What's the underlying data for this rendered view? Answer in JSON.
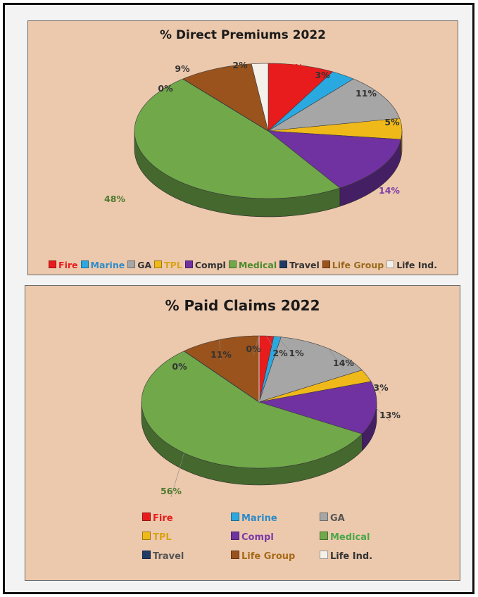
{
  "colors": {
    "Fire": "#e81c1c",
    "Marine": "#2aa8e0",
    "GA": "#a6a6a6",
    "TPL": "#f0b91a",
    "Compl": "#7032a0",
    "Medical": "#70a84a",
    "Travel": "#1f3b66",
    "Life Group": "#9a531c",
    "Life Ind.": "#f4f0ea"
  },
  "chart_data": [
    {
      "type": "pie",
      "title": "% Direct Premiums 2022",
      "categories": [
        "Fire",
        "Marine",
        "GA",
        "TPL",
        "Compl",
        "Medical",
        "Travel",
        "Life Group",
        "Life Ind."
      ],
      "values": [
        8,
        3,
        11,
        5,
        14,
        48,
        0,
        9,
        2
      ],
      "data_labels": [
        "8%",
        "3%",
        "11%",
        "5%",
        "14%",
        "48%",
        "0%",
        "9%",
        "2%"
      ],
      "legend_position": "bottom",
      "legend_text_colors": [
        "#e81c1c",
        "#2e8bc8",
        "#333333",
        "#d9a212",
        "#333333",
        "#4d8a2e",
        "#333333",
        "#9a6a1c",
        "#333333"
      ],
      "label_colors": [
        "#e81c1c",
        "#333333",
        "#333333",
        "#333333",
        "#7a3aa8",
        "#4d7a2e",
        "#333333",
        "#333333",
        "#333333"
      ]
    },
    {
      "type": "pie",
      "title": "% Paid Claims 2022",
      "categories": [
        "Fire",
        "Marine",
        "GA",
        "TPL",
        "Compl",
        "Medical",
        "Travel",
        "Life Group",
        "Life Ind."
      ],
      "values": [
        2,
        1,
        14,
        3,
        13,
        56,
        0,
        11,
        0
      ],
      "data_labels": [
        "2%",
        "1%",
        "14%",
        "3%",
        "13%",
        "56%",
        "0%",
        "11%",
        "0%"
      ],
      "legend_position": "bottom",
      "legend_text_colors": [
        "#e81c1c",
        "#2e8bc8",
        "#555555",
        "#d9a212",
        "#7a3aa8",
        "#4aa84a",
        "#555555",
        "#a66a18",
        "#333333"
      ],
      "label_colors": [
        "#333333",
        "#333333",
        "#333333",
        "#333333",
        "#333333",
        "#4d7a2e",
        "#333333",
        "#333333",
        "#333333"
      ]
    }
  ]
}
